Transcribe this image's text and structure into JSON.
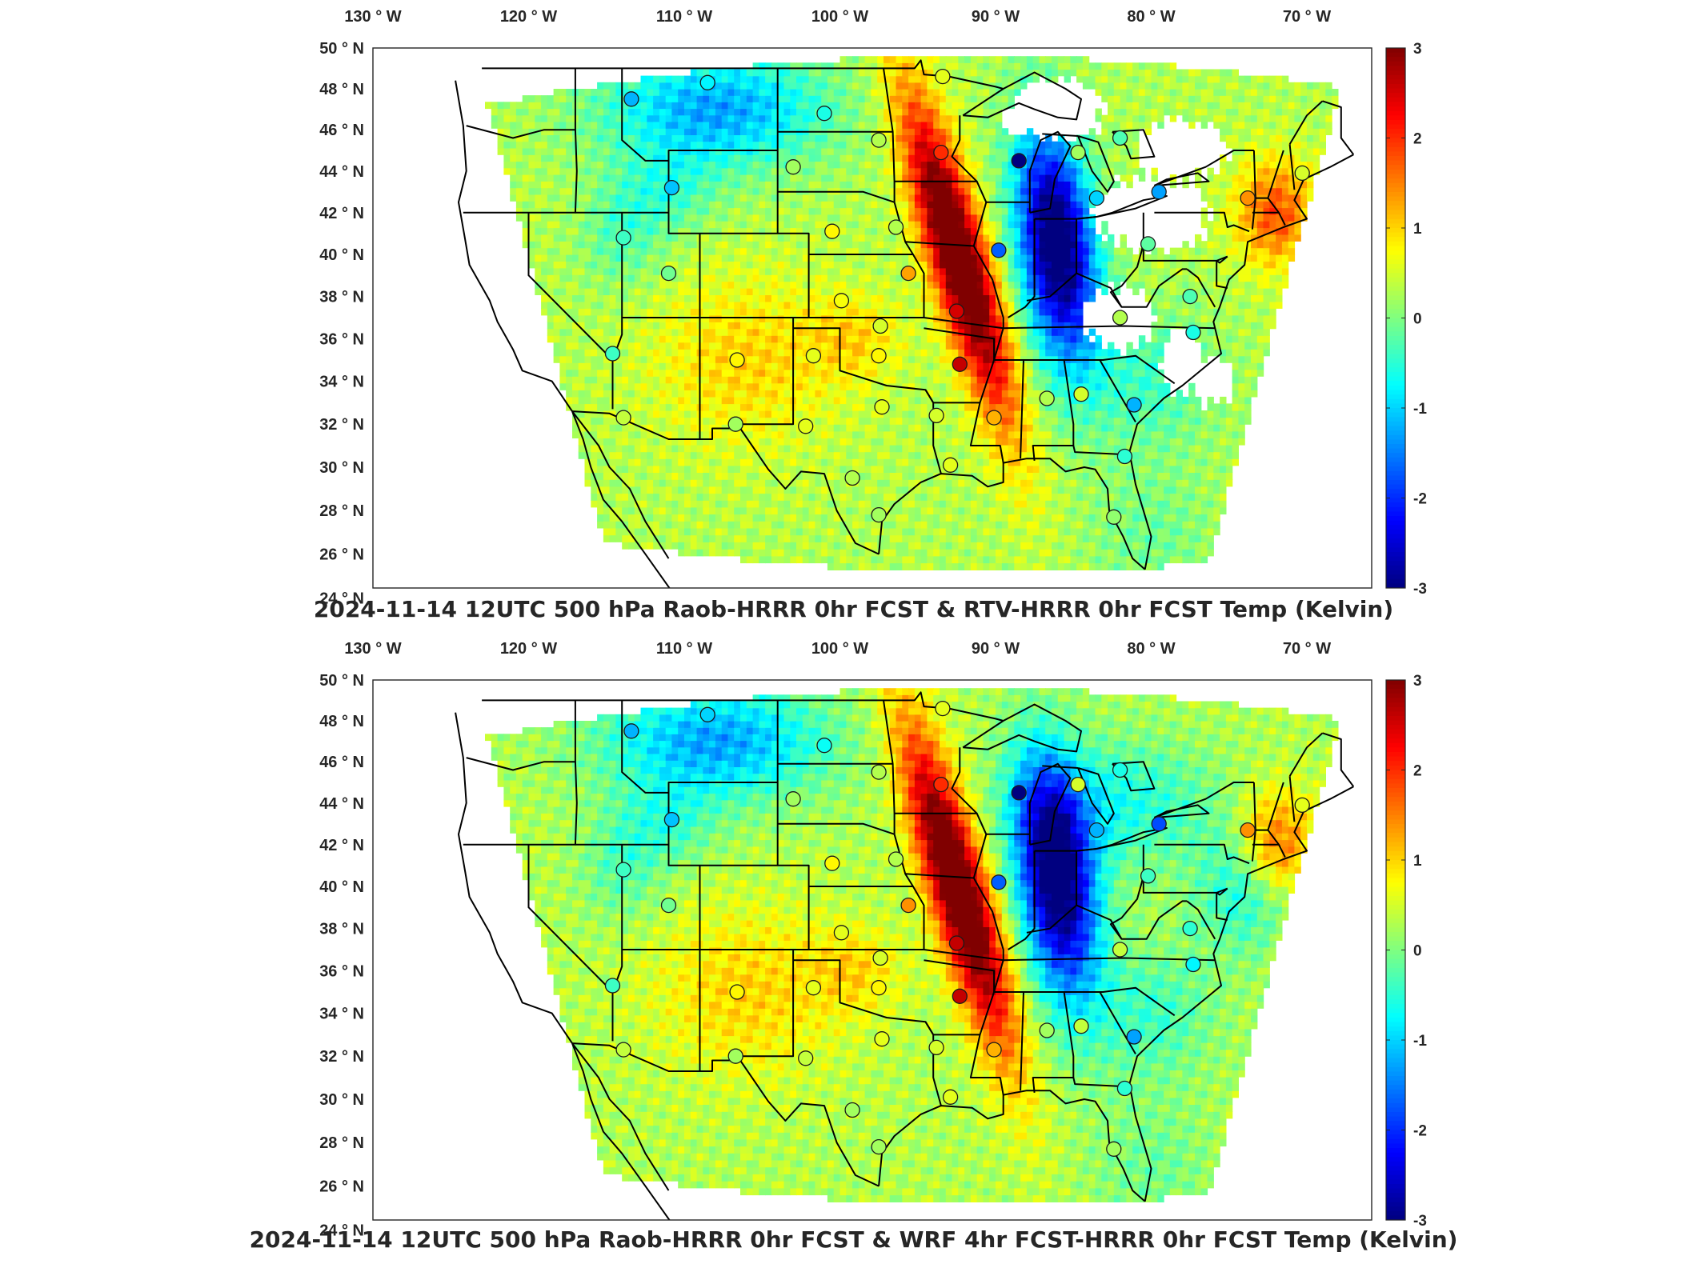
{
  "panels": [
    {
      "id": "top",
      "title": "2024-11-14 12UTC 500 hPa Raob-HRRR 0hr FCST & RTV-HRRR 0hr FCST Temp (Kelvin)",
      "variant": "rtv"
    },
    {
      "id": "bottom",
      "title": "2024-11-14 12UTC 500 hPa Raob-HRRR 0hr FCST & WRF 4hr FCST-HRRR 0hr FCST Temp (Kelvin)",
      "variant": "wrf"
    }
  ],
  "axes": {
    "lon_ticks": [
      {
        "value": -130,
        "label": "130 ° W"
      },
      {
        "value": -120,
        "label": "120 ° W"
      },
      {
        "value": -110,
        "label": "110 ° W"
      },
      {
        "value": -100,
        "label": "100 ° W"
      },
      {
        "value": -90,
        "label": "90 ° W"
      },
      {
        "value": -80,
        "label": "80 ° W"
      },
      {
        "value": -70,
        "label": "70 ° W"
      }
    ],
    "lat_ticks": [
      {
        "value": 50,
        "label": "50 ° N"
      },
      {
        "value": 48,
        "label": "48 ° N"
      },
      {
        "value": 46,
        "label": "46 ° N"
      },
      {
        "value": 44,
        "label": "44 ° N"
      },
      {
        "value": 42,
        "label": "42 ° N"
      },
      {
        "value": 40,
        "label": "40 ° N"
      },
      {
        "value": 38,
        "label": "38 ° N"
      },
      {
        "value": 36,
        "label": "36 ° N"
      },
      {
        "value": 34,
        "label": "34 ° N"
      },
      {
        "value": 32,
        "label": "32 ° N"
      },
      {
        "value": 30,
        "label": "30 ° N"
      },
      {
        "value": 28,
        "label": "28 ° N"
      },
      {
        "value": 26,
        "label": "26 ° N"
      },
      {
        "value": 24,
        "label": "24 ° N"
      }
    ]
  },
  "colorbar": {
    "min": -3,
    "max": 3,
    "colormap": "jet",
    "ticks": [
      {
        "value": 3,
        "label": "3"
      },
      {
        "value": 2,
        "label": "2"
      },
      {
        "value": 1,
        "label": "1"
      },
      {
        "value": 0,
        "label": "0"
      },
      {
        "value": -1,
        "label": "-1"
      },
      {
        "value": -2,
        "label": "-2"
      },
      {
        "value": -3,
        "label": "-3"
      }
    ]
  },
  "raob_stations": [
    {
      "lon": -113.4,
      "lat": 47.5,
      "v_top": -1.2,
      "v_bot": -1.2
    },
    {
      "lon": -108.5,
      "lat": 48.3,
      "v_top": -0.8,
      "v_bot": -1.0
    },
    {
      "lon": -101.0,
      "lat": 46.8,
      "v_top": -0.6,
      "v_bot": -0.7
    },
    {
      "lon": -97.5,
      "lat": 45.5,
      "v_top": 0.3,
      "v_bot": 0.3
    },
    {
      "lon": -93.4,
      "lat": 48.6,
      "v_top": 0.6,
      "v_bot": 0.6
    },
    {
      "lon": -93.5,
      "lat": 44.9,
      "v_top": 2.0,
      "v_bot": 2.0
    },
    {
      "lon": -88.5,
      "lat": 44.5,
      "v_top": -3.0,
      "v_bot": -3.0
    },
    {
      "lon": -84.7,
      "lat": 44.9,
      "v_top": 0.2,
      "v_bot": 0.5
    },
    {
      "lon": -83.5,
      "lat": 42.7,
      "v_top": -1.0,
      "v_bot": -1.2
    },
    {
      "lon": -79.5,
      "lat": 43.0,
      "v_top": -1.3,
      "v_bot": -1.8
    },
    {
      "lon": -73.8,
      "lat": 42.7,
      "v_top": 1.4,
      "v_bot": 1.4
    },
    {
      "lon": -70.3,
      "lat": 43.9,
      "v_top": 0.5,
      "v_bot": 0.6
    },
    {
      "lon": -110.8,
      "lat": 43.2,
      "v_top": -1.1,
      "v_bot": -1.1
    },
    {
      "lon": -103.0,
      "lat": 44.2,
      "v_top": 0.2,
      "v_bot": 0.2
    },
    {
      "lon": -113.9,
      "lat": 40.8,
      "v_top": -0.4,
      "v_bot": -0.4
    },
    {
      "lon": -111.0,
      "lat": 39.1,
      "v_top": -0.1,
      "v_bot": -0.1
    },
    {
      "lon": -100.5,
      "lat": 41.1,
      "v_top": 0.8,
      "v_bot": 0.8
    },
    {
      "lon": -96.4,
      "lat": 41.3,
      "v_top": 0.3,
      "v_bot": 0.3
    },
    {
      "lon": -95.6,
      "lat": 39.1,
      "v_top": 1.3,
      "v_bot": 1.4
    },
    {
      "lon": -99.9,
      "lat": 37.8,
      "v_top": 0.7,
      "v_bot": 0.6
    },
    {
      "lon": -89.8,
      "lat": 40.2,
      "v_top": -1.7,
      "v_bot": -1.7
    },
    {
      "lon": -80.2,
      "lat": 40.5,
      "v_top": -0.2,
      "v_bot": -0.4
    },
    {
      "lon": -82.0,
      "lat": 37.0,
      "v_top": 0.3,
      "v_bot": 0.4
    },
    {
      "lon": -77.5,
      "lat": 38.0,
      "v_top": -0.3,
      "v_bot": -0.5
    },
    {
      "lon": -92.5,
      "lat": 37.3,
      "v_top": 2.5,
      "v_bot": 2.6
    },
    {
      "lon": -97.4,
      "lat": 36.6,
      "v_top": 0.5,
      "v_bot": 0.5
    },
    {
      "lon": -97.5,
      "lat": 35.2,
      "v_top": 0.8,
      "v_bot": 0.8
    },
    {
      "lon": -101.7,
      "lat": 35.2,
      "v_top": 0.6,
      "v_bot": 0.6
    },
    {
      "lon": -106.6,
      "lat": 35.0,
      "v_top": 0.8,
      "v_bot": 0.8
    },
    {
      "lon": -114.6,
      "lat": 35.3,
      "v_top": -0.4,
      "v_bot": -0.4
    },
    {
      "lon": -113.9,
      "lat": 32.3,
      "v_top": 0.4,
      "v_bot": 0.4
    },
    {
      "lon": -106.7,
      "lat": 32.0,
      "v_top": 0.2,
      "v_bot": 0.2
    },
    {
      "lon": -102.2,
      "lat": 31.9,
      "v_top": 0.6,
      "v_bot": 0.4
    },
    {
      "lon": -97.3,
      "lat": 32.8,
      "v_top": 0.6,
      "v_bot": 0.6
    },
    {
      "lon": -93.8,
      "lat": 32.4,
      "v_top": 0.5,
      "v_bot": 0.5
    },
    {
      "lon": -90.1,
      "lat": 32.3,
      "v_top": 1.2,
      "v_bot": 1.2
    },
    {
      "lon": -92.3,
      "lat": 34.8,
      "v_top": 2.6,
      "v_bot": 2.6
    },
    {
      "lon": -86.7,
      "lat": 33.2,
      "v_top": 0.3,
      "v_bot": 0.2
    },
    {
      "lon": -84.5,
      "lat": 33.4,
      "v_top": 0.5,
      "v_bot": 0.4
    },
    {
      "lon": -81.1,
      "lat": 32.9,
      "v_top": -1.2,
      "v_bot": -1.3
    },
    {
      "lon": -81.7,
      "lat": 30.5,
      "v_top": -0.5,
      "v_bot": -0.5
    },
    {
      "lon": -92.9,
      "lat": 30.1,
      "v_top": 0.6,
      "v_bot": 0.6
    },
    {
      "lon": -99.2,
      "lat": 29.5,
      "v_top": 0.3,
      "v_bot": 0.2
    },
    {
      "lon": -97.5,
      "lat": 27.8,
      "v_top": 0.2,
      "v_bot": 0.2
    },
    {
      "lon": -82.4,
      "lat": 27.7,
      "v_top": 0.1,
      "v_bot": 0.2
    },
    {
      "lon": -82.0,
      "lat": 45.6,
      "v_top": -0.3,
      "v_bot": -0.6
    },
    {
      "lon": -77.3,
      "lat": 36.3,
      "v_top": -0.6,
      "v_bot": -0.8
    }
  ]
}
